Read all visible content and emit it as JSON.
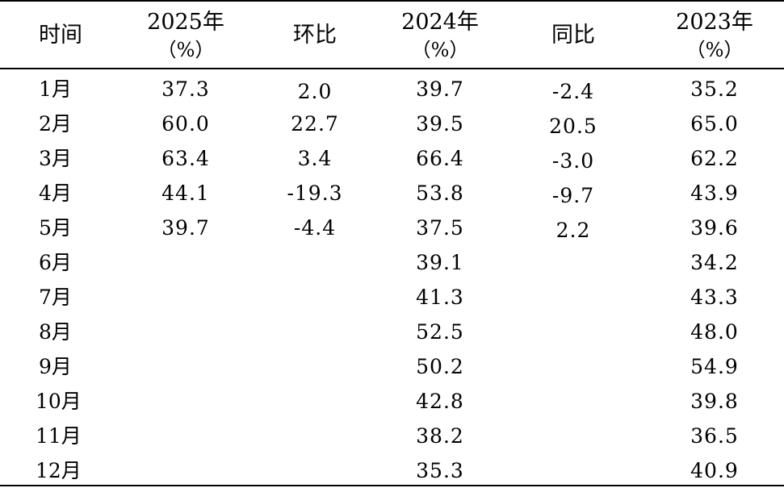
{
  "headers": {
    "time": "时间",
    "y2025": "2025年",
    "y2025_unit": "（%）",
    "mom": "环比",
    "y2024": "2024年",
    "y2024_unit": "（%）",
    "yoy": "同比",
    "y2023": "2023年",
    "y2023_unit": "（%）"
  },
  "rows": [
    {
      "month": "1月",
      "y2025": "37.3",
      "mom": "2.0",
      "y2024": "39.7",
      "yoy": "-2.4",
      "y2023": "35.2"
    },
    {
      "month": "2月",
      "y2025": "60.0",
      "mom": "22.7",
      "y2024": "39.5",
      "yoy": "20.5",
      "y2023": "65.0"
    },
    {
      "month": "3月",
      "y2025": "63.4",
      "mom": "3.4",
      "y2024": "66.4",
      "yoy": "-3.0",
      "y2023": "62.2"
    },
    {
      "month": "4月",
      "y2025": "44.1",
      "mom": "-19.3",
      "y2024": "53.8",
      "yoy": "-9.7",
      "y2023": "43.9"
    },
    {
      "month": "5月",
      "y2025": "39.7",
      "mom": "-4.4",
      "y2024": "37.5",
      "yoy": "2.2",
      "y2023": "39.6"
    },
    {
      "month": "6月",
      "y2025": "",
      "mom": "",
      "y2024": "39.1",
      "yoy": "",
      "y2023": "34.2"
    },
    {
      "month": "7月",
      "y2025": "",
      "mom": "",
      "y2024": "41.3",
      "yoy": "",
      "y2023": "43.3"
    },
    {
      "month": "8月",
      "y2025": "",
      "mom": "",
      "y2024": "52.5",
      "yoy": "",
      "y2023": "48.0"
    },
    {
      "month": "9月",
      "y2025": "",
      "mom": "",
      "y2024": "50.2",
      "yoy": "",
      "y2023": "54.9"
    },
    {
      "month": "10月",
      "y2025": "",
      "mom": "",
      "y2024": "42.8",
      "yoy": "",
      "y2023": "39.8"
    },
    {
      "month": "11月",
      "y2025": "",
      "mom": "",
      "y2024": "38.2",
      "yoy": "",
      "y2023": "36.5"
    },
    {
      "month": "12月",
      "y2025": "",
      "mom": "",
      "y2024": "35.3",
      "yoy": "",
      "y2023": "40.9"
    }
  ]
}
